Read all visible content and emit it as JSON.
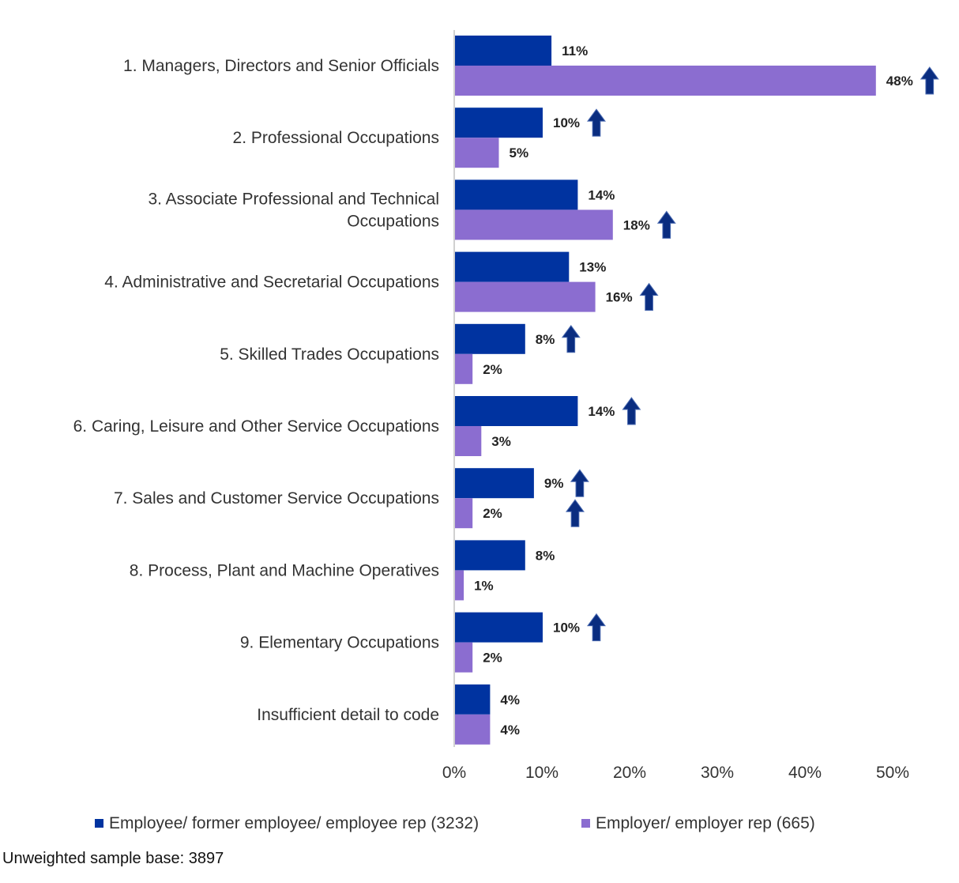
{
  "chart_data": {
    "type": "bar",
    "orientation": "horizontal",
    "categories": [
      [
        "1. Managers, Directors and Senior Officials"
      ],
      [
        "2. Professional Occupations"
      ],
      [
        "3. Associate Professional and Technical",
        "Occupations"
      ],
      [
        "4. Administrative and Secretarial Occupations"
      ],
      [
        "5. Skilled Trades Occupations"
      ],
      [
        "6. Caring, Leisure and Other Service Occupations"
      ],
      [
        "7. Sales and Customer Service Occupations"
      ],
      [
        "8. Process, Plant and Machine Operatives"
      ],
      [
        "9. Elementary Occupations"
      ],
      [
        "Insufficient detail to code"
      ]
    ],
    "series": [
      {
        "name": "Employee/ former employee/ employee rep (3232)",
        "color": "#0033a0",
        "values": [
          11,
          10,
          14,
          13,
          8,
          14,
          9,
          8,
          10,
          4
        ],
        "significantly_higher": [
          false,
          true,
          false,
          false,
          true,
          true,
          true,
          false,
          true,
          false
        ]
      },
      {
        "name": "Employer/ employer rep (665)",
        "color": "#8b6dd0",
        "values": [
          48,
          5,
          18,
          16,
          2,
          3,
          2,
          1,
          2,
          4
        ],
        "significantly_higher": [
          true,
          false,
          true,
          true,
          false,
          false,
          true,
          false,
          false,
          false
        ]
      }
    ],
    "value_suffix": "%",
    "xlim": [
      0,
      50
    ],
    "x_ticks": [
      "0%",
      "10%",
      "20%",
      "30%",
      "40%",
      "50%"
    ],
    "grid": false,
    "legend_placement": "bottom",
    "arrow_color": "#0a2d80",
    "arrow_meaning": "up-arrow-icon"
  },
  "footnote": "Unweighted sample base: 3897"
}
